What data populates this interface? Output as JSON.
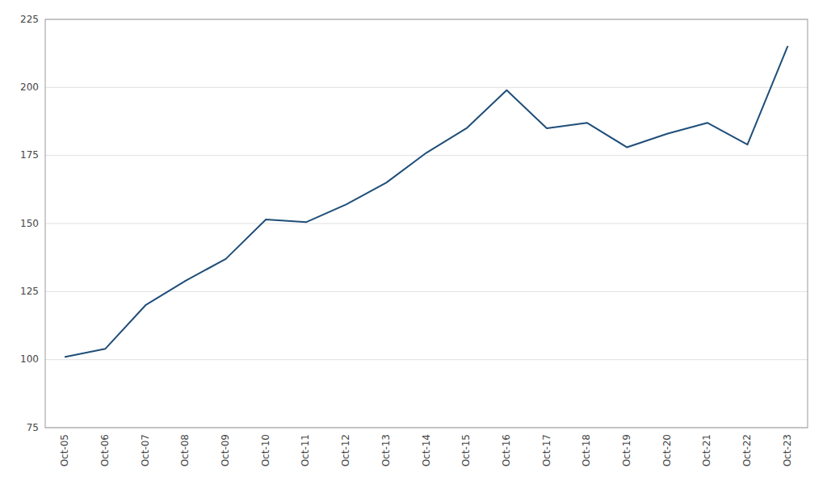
{
  "chart_data": {
    "type": "line",
    "categories": [
      "Oct-05",
      "Oct-06",
      "Oct-07",
      "Oct-08",
      "Oct-09",
      "Oct-10",
      "Oct-11",
      "Oct-12",
      "Oct-13",
      "Oct-14",
      "Oct-15",
      "Oct-16",
      "Oct-17",
      "Oct-18",
      "Oct-19",
      "Oct-20",
      "Oct-21",
      "Oct-22",
      "Oct-23"
    ],
    "values": [
      101.0,
      104.0,
      120.0,
      129.0,
      137.0,
      151.5,
      150.5,
      157.0,
      165.0,
      176.0,
      185.0,
      199.0,
      185.0,
      187.0,
      178.0,
      183.0,
      187.0,
      179.0,
      215.0
    ],
    "color": "#1f4e79",
    "ylim": [
      75,
      225
    ],
    "yticks": [
      75,
      100,
      125,
      150,
      175,
      200,
      225
    ],
    "grid": true
  }
}
